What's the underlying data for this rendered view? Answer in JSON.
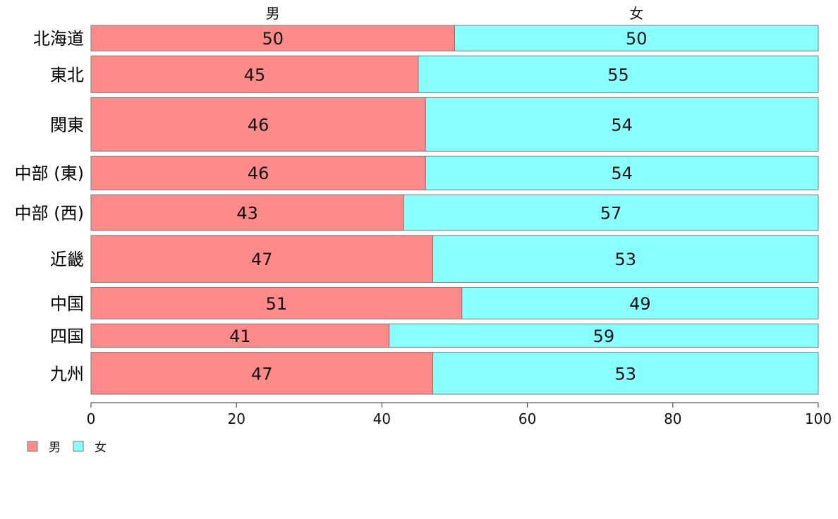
{
  "chart_data": {
    "type": "bar",
    "orientation": "horizontal",
    "stacked": true,
    "categories": [
      "北海道",
      "東北",
      "関東",
      "中部 (東)",
      "中部 (西)",
      "近畿",
      "中国",
      "四国",
      "九州"
    ],
    "category_weights": [
      0.5,
      0.72,
      1.05,
      0.66,
      0.7,
      0.92,
      0.62,
      0.46,
      0.82
    ],
    "series": [
      {
        "name": "男",
        "color": "#ff8a8a",
        "values": [
          50,
          45,
          46,
          46,
          43,
          47,
          51,
          41,
          47
        ]
      },
      {
        "name": "女",
        "color": "#8affff",
        "values": [
          50,
          55,
          54,
          54,
          57,
          53,
          49,
          59,
          53
        ]
      }
    ],
    "xlim": [
      0,
      100
    ],
    "xticks": [
      0,
      20,
      40,
      60,
      80,
      100
    ],
    "legend_position": "bottom-left",
    "grid": false
  }
}
